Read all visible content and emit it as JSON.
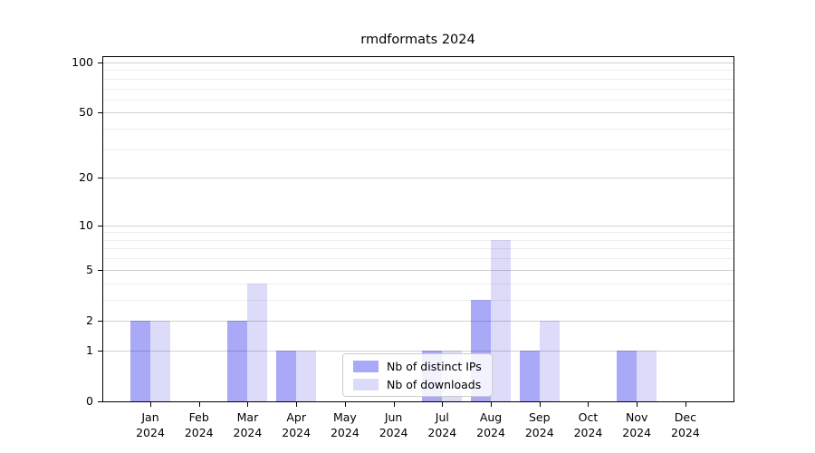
{
  "title": "rmdformats 2024",
  "chart_data": {
    "type": "bar",
    "title": "rmdformats 2024",
    "categories": [
      "Jan 2024",
      "Feb 2024",
      "Mar 2024",
      "Apr 2024",
      "May 2024",
      "Jun 2024",
      "Jul 2024",
      "Aug 2024",
      "Sep 2024",
      "Oct 2024",
      "Nov 2024",
      "Dec 2024"
    ],
    "series": [
      {
        "name": "Nb of distinct IPs",
        "color": "#a9a9f8",
        "values": [
          2,
          0,
          2,
          1,
          0,
          0,
          1,
          3,
          1,
          0,
          1,
          0
        ]
      },
      {
        "name": "Nb of downloads",
        "color": "#dcdcfa",
        "values": [
          2,
          0,
          4,
          1,
          0,
          0,
          1,
          8,
          2,
          0,
          1,
          0
        ]
      }
    ],
    "xlabel": "",
    "ylabel": "",
    "yscale": "log1p",
    "ylim": [
      0,
      110
    ],
    "ytick_values": [
      0,
      1,
      2,
      5,
      10,
      20,
      50,
      100
    ],
    "minor_grid_values": [
      3,
      4,
      6,
      7,
      8,
      9,
      30,
      40,
      60,
      70,
      80,
      90
    ],
    "grid": "horizontal",
    "legend_position": "lower-center-inside"
  },
  "colors": {
    "background": "#ffffff",
    "spine": "#000000",
    "bar_distinct_ips": "#a9a9f8",
    "bar_downloads": "#dcdcfa",
    "major_grid": "#cccccc",
    "minor_grid": "#efefef",
    "legend_border": "#cccccc"
  }
}
